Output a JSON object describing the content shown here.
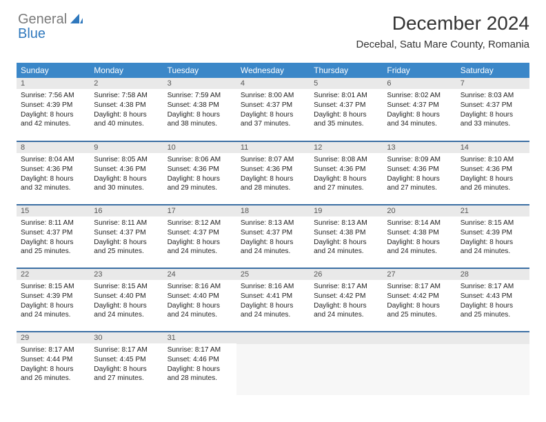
{
  "logo": {
    "general": "General",
    "blue": "Blue"
  },
  "title": "December 2024",
  "subtitle": "Decebal, Satu Mare County, Romania",
  "colors": {
    "header_bg": "#3b87c8",
    "header_fg": "#ffffff",
    "row_border": "#3b6ea3",
    "daynum_bg": "#e9e9e9",
    "logo_gray": "#7a7a7a",
    "logo_blue": "#2f78bd",
    "empty_bg": "#f7f7f7"
  },
  "day_headers": [
    "Sunday",
    "Monday",
    "Tuesday",
    "Wednesday",
    "Thursday",
    "Friday",
    "Saturday"
  ],
  "weeks": [
    [
      {
        "n": "1",
        "sr": "7:56 AM",
        "ss": "4:39 PM",
        "dl": "8 hours and 42 minutes."
      },
      {
        "n": "2",
        "sr": "7:58 AM",
        "ss": "4:38 PM",
        "dl": "8 hours and 40 minutes."
      },
      {
        "n": "3",
        "sr": "7:59 AM",
        "ss": "4:38 PM",
        "dl": "8 hours and 38 minutes."
      },
      {
        "n": "4",
        "sr": "8:00 AM",
        "ss": "4:37 PM",
        "dl": "8 hours and 37 minutes."
      },
      {
        "n": "5",
        "sr": "8:01 AM",
        "ss": "4:37 PM",
        "dl": "8 hours and 35 minutes."
      },
      {
        "n": "6",
        "sr": "8:02 AM",
        "ss": "4:37 PM",
        "dl": "8 hours and 34 minutes."
      },
      {
        "n": "7",
        "sr": "8:03 AM",
        "ss": "4:37 PM",
        "dl": "8 hours and 33 minutes."
      }
    ],
    [
      {
        "n": "8",
        "sr": "8:04 AM",
        "ss": "4:36 PM",
        "dl": "8 hours and 32 minutes."
      },
      {
        "n": "9",
        "sr": "8:05 AM",
        "ss": "4:36 PM",
        "dl": "8 hours and 30 minutes."
      },
      {
        "n": "10",
        "sr": "8:06 AM",
        "ss": "4:36 PM",
        "dl": "8 hours and 29 minutes."
      },
      {
        "n": "11",
        "sr": "8:07 AM",
        "ss": "4:36 PM",
        "dl": "8 hours and 28 minutes."
      },
      {
        "n": "12",
        "sr": "8:08 AM",
        "ss": "4:36 PM",
        "dl": "8 hours and 27 minutes."
      },
      {
        "n": "13",
        "sr": "8:09 AM",
        "ss": "4:36 PM",
        "dl": "8 hours and 27 minutes."
      },
      {
        "n": "14",
        "sr": "8:10 AM",
        "ss": "4:36 PM",
        "dl": "8 hours and 26 minutes."
      }
    ],
    [
      {
        "n": "15",
        "sr": "8:11 AM",
        "ss": "4:37 PM",
        "dl": "8 hours and 25 minutes."
      },
      {
        "n": "16",
        "sr": "8:11 AM",
        "ss": "4:37 PM",
        "dl": "8 hours and 25 minutes."
      },
      {
        "n": "17",
        "sr": "8:12 AM",
        "ss": "4:37 PM",
        "dl": "8 hours and 24 minutes."
      },
      {
        "n": "18",
        "sr": "8:13 AM",
        "ss": "4:37 PM",
        "dl": "8 hours and 24 minutes."
      },
      {
        "n": "19",
        "sr": "8:13 AM",
        "ss": "4:38 PM",
        "dl": "8 hours and 24 minutes."
      },
      {
        "n": "20",
        "sr": "8:14 AM",
        "ss": "4:38 PM",
        "dl": "8 hours and 24 minutes."
      },
      {
        "n": "21",
        "sr": "8:15 AM",
        "ss": "4:39 PM",
        "dl": "8 hours and 24 minutes."
      }
    ],
    [
      {
        "n": "22",
        "sr": "8:15 AM",
        "ss": "4:39 PM",
        "dl": "8 hours and 24 minutes."
      },
      {
        "n": "23",
        "sr": "8:15 AM",
        "ss": "4:40 PM",
        "dl": "8 hours and 24 minutes."
      },
      {
        "n": "24",
        "sr": "8:16 AM",
        "ss": "4:40 PM",
        "dl": "8 hours and 24 minutes."
      },
      {
        "n": "25",
        "sr": "8:16 AM",
        "ss": "4:41 PM",
        "dl": "8 hours and 24 minutes."
      },
      {
        "n": "26",
        "sr": "8:17 AM",
        "ss": "4:42 PM",
        "dl": "8 hours and 24 minutes."
      },
      {
        "n": "27",
        "sr": "8:17 AM",
        "ss": "4:42 PM",
        "dl": "8 hours and 25 minutes."
      },
      {
        "n": "28",
        "sr": "8:17 AM",
        "ss": "4:43 PM",
        "dl": "8 hours and 25 minutes."
      }
    ],
    [
      {
        "n": "29",
        "sr": "8:17 AM",
        "ss": "4:44 PM",
        "dl": "8 hours and 26 minutes."
      },
      {
        "n": "30",
        "sr": "8:17 AM",
        "ss": "4:45 PM",
        "dl": "8 hours and 27 minutes."
      },
      {
        "n": "31",
        "sr": "8:17 AM",
        "ss": "4:46 PM",
        "dl": "8 hours and 28 minutes."
      },
      null,
      null,
      null,
      null
    ]
  ],
  "labels": {
    "sunrise": "Sunrise: ",
    "sunset": "Sunset: ",
    "daylight": "Daylight: "
  }
}
